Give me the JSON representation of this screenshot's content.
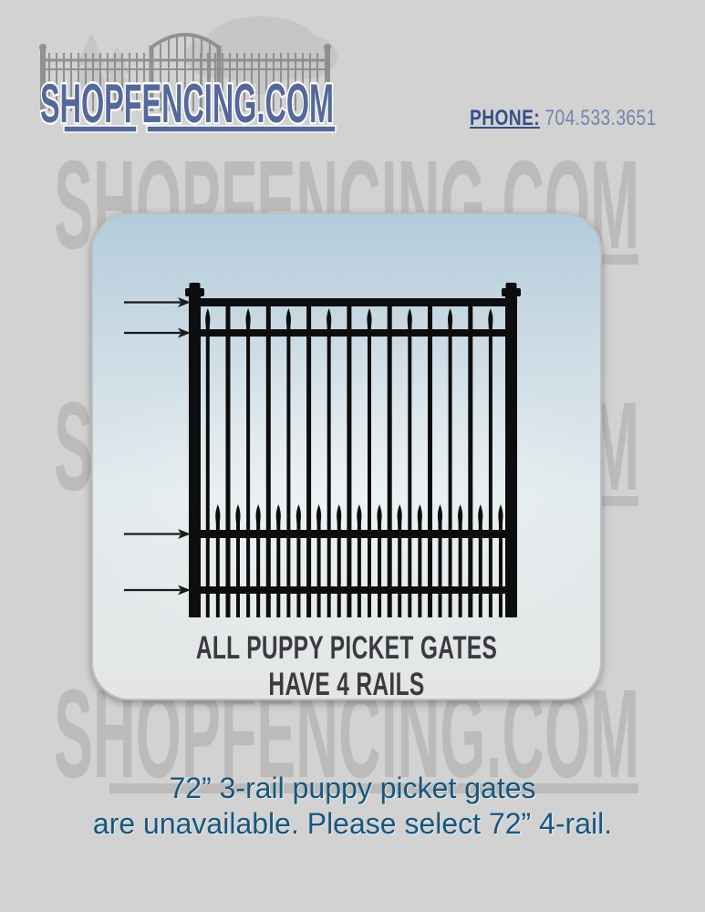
{
  "page": {
    "background": "#d2d2d2"
  },
  "header": {
    "logo": {
      "text": "SHOPFENCING.COM"
    },
    "phone": {
      "label": "PHONE:",
      "number": "704.533.3651"
    }
  },
  "watermark": {
    "text": "SHOPFENCING.COM"
  },
  "card": {
    "caption": "ALL PUPPY PICKET GATES HAVE 4 RAILS",
    "illustration": {
      "name": "puppy-picket-gate",
      "rails": 4
    }
  },
  "notice": {
    "line1": "72” 3-rail puppy picket gates",
    "line2": "are unavailable. Please select 72” 4-rail."
  },
  "colors": {
    "logo_blue": "#54689b",
    "phone_label_blue": "#35508a",
    "phone_number_blue": "#7085ab",
    "caption_dark": "#3b3b3f",
    "notice_blue": "#17567e",
    "gate_black": "#0d0d0d"
  }
}
